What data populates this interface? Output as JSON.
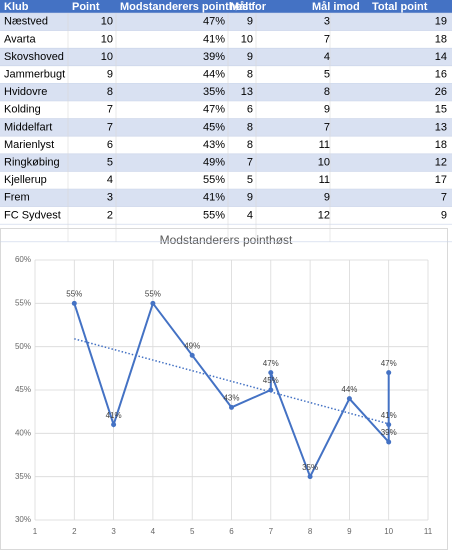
{
  "table": {
    "header": [
      "Klub",
      "Point",
      "Modstanderers pointhøst",
      "Mål for",
      "Mål imod",
      "Total point"
    ],
    "rows": [
      [
        "Næstved",
        10,
        "47%",
        9,
        3,
        19
      ],
      [
        "Avarta",
        10,
        "41%",
        10,
        7,
        18
      ],
      [
        "Skovshoved",
        10,
        "39%",
        9,
        4,
        14
      ],
      [
        "Jammerbugt",
        9,
        "44%",
        8,
        5,
        16
      ],
      [
        "Hvidovre",
        8,
        "35%",
        13,
        8,
        26
      ],
      [
        "Kolding",
        7,
        "47%",
        6,
        9,
        15
      ],
      [
        "Middelfart",
        7,
        "45%",
        8,
        7,
        13
      ],
      [
        "Marienlyst",
        6,
        "43%",
        8,
        11,
        18
      ],
      [
        "Ringkøbing",
        5,
        "49%",
        7,
        10,
        12
      ],
      [
        "Kjellerup",
        4,
        "55%",
        5,
        11,
        17
      ],
      [
        "Frem",
        3,
        "41%",
        9,
        9,
        7
      ],
      [
        "FC Sydvest",
        2,
        "55%",
        4,
        12,
        9
      ]
    ]
  },
  "chart_data": {
    "type": "scatter-line",
    "title": "Modstanderers pointhøst",
    "x": [
      10,
      10,
      10,
      9,
      8,
      7,
      7,
      6,
      5,
      4,
      3,
      2
    ],
    "series": [
      {
        "color": "#4472c4",
        "values": [
          47,
          41,
          39,
          44,
          35,
          47,
          45,
          43,
          49,
          55,
          41,
          55
        ],
        "value_labels": [
          "47%",
          "41%",
          "39%",
          "44%",
          "35%",
          "47%",
          "45%",
          "43%",
          "49%",
          "55%",
          "41%",
          "55%"
        ]
      }
    ],
    "xlim": [
      1,
      11
    ],
    "xticks": [
      1,
      2,
      3,
      4,
      5,
      6,
      7,
      8,
      9,
      10,
      11
    ],
    "ylim": [
      30,
      60
    ],
    "yticks": [
      {
        "value": 30,
        "label": "30%"
      },
      {
        "value": 35,
        "label": "35%"
      },
      {
        "value": 40,
        "label": "40%"
      },
      {
        "value": 45,
        "label": "45%"
      },
      {
        "value": 50,
        "label": "50%"
      },
      {
        "value": 55,
        "label": "55%"
      },
      {
        "value": 60,
        "label": "60%"
      }
    ],
    "grid": true,
    "trendline": true
  }
}
